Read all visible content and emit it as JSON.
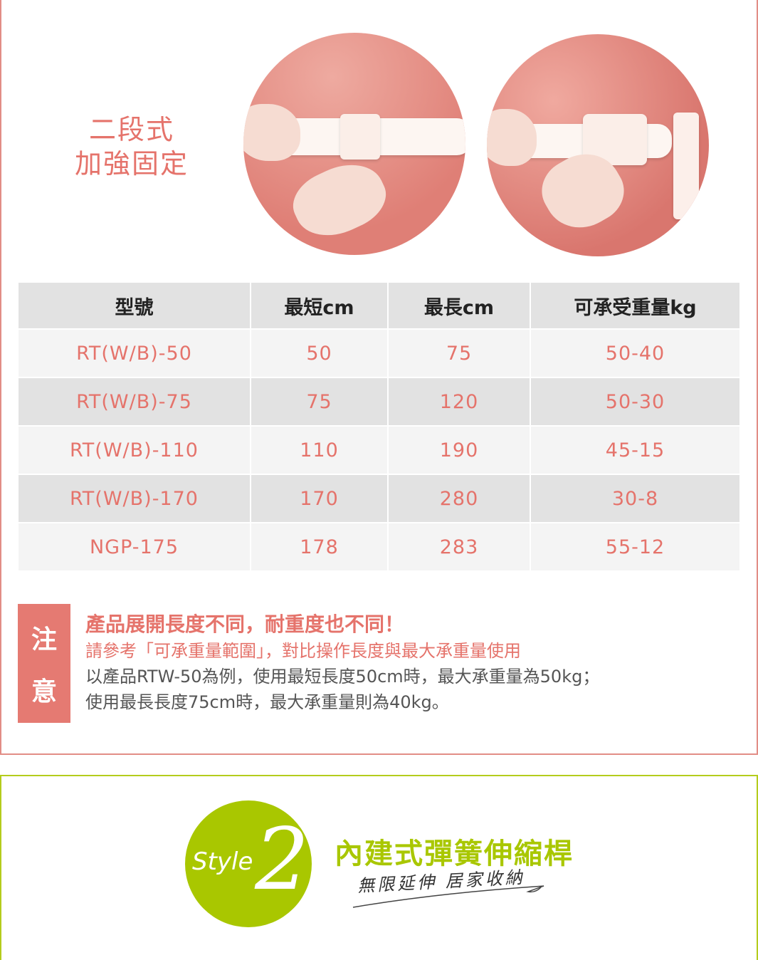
{
  "feature": {
    "title_line1": "二段式",
    "title_line2": "加強固定"
  },
  "table": {
    "headers": [
      "型號",
      "最短cm",
      "最長cm",
      "可承受重量kg"
    ],
    "rows": [
      [
        "RT(W/B)-50",
        "50",
        "75",
        "50-40"
      ],
      [
        "RT(W/B)-75",
        "75",
        "120",
        "50-30"
      ],
      [
        "RT(W/B)-110",
        "110",
        "190",
        "45-15"
      ],
      [
        "RT(W/B)-170",
        "170",
        "280",
        "30-8"
      ],
      [
        "NGP-175",
        "178",
        "283",
        "55-12"
      ]
    ]
  },
  "note": {
    "tag": [
      "注",
      "意"
    ],
    "headline": "產品展開長度不同，耐重度也不同！",
    "subline": "請參考「可承重量範圍」，對比操作長度與最大承重量使用",
    "body1": "以產品RTW-50為例，使用最短長度50cm時，最大承重量為50kg；",
    "body2": "使用最長長度75cm時，最大承重量則為40kg。"
  },
  "style2": {
    "badge_word": "Style",
    "badge_number": "2",
    "title": "內建式彈簧伸縮桿",
    "subtitle": "無限延伸 居家收納"
  },
  "colors": {
    "accent_pink": "#e5736b",
    "accent_green": "#a9c700",
    "border_pink": "#e28d86"
  }
}
